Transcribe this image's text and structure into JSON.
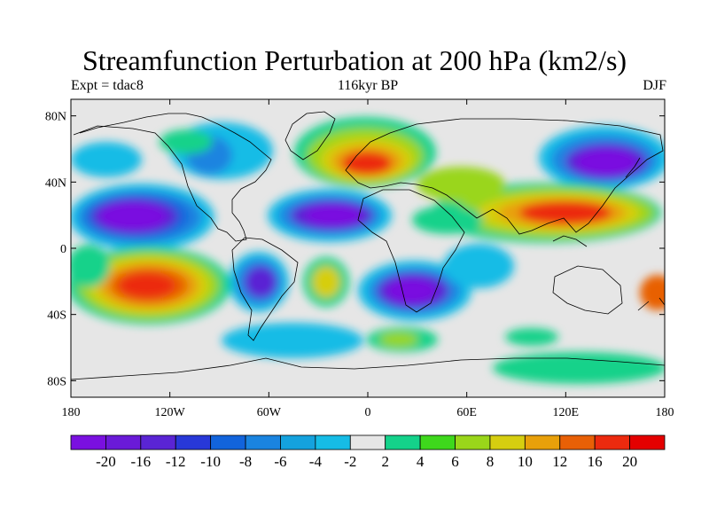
{
  "title": "Streamfunction Perturbation at 200 hPa (km2/s)",
  "left_subtitle": "Expt = tdac8",
  "center_subtitle": "116kyr BP",
  "right_subtitle": "DJF",
  "axes": {
    "lat_ticks": [
      "80N",
      "40N",
      "0",
      "40S",
      "80S"
    ],
    "lon_ticks": [
      "180",
      "120W",
      "60W",
      "0",
      "60E",
      "120E",
      "180"
    ],
    "lat_range": [
      -90,
      90
    ],
    "lon_range": [
      -180,
      180
    ]
  },
  "colorbar": {
    "labels": [
      "-20",
      "-16",
      "-12",
      "-10",
      "-8",
      "-6",
      "-4",
      "-2",
      "2",
      "4",
      "6",
      "8",
      "10",
      "12",
      "16",
      "20"
    ],
    "colors": [
      "#7a10e0",
      "#6a1ad8",
      "#5a24d4",
      "#2838d8",
      "#1264dc",
      "#1a84e0",
      "#14a2de",
      "#16bce6",
      "#e6e6e6",
      "#14d28a",
      "#3ed81c",
      "#9ad61a",
      "#d6ce10",
      "#e8a00a",
      "#e86006",
      "#ec2a0e",
      "#e40000"
    ]
  },
  "colors": {
    "background": "#e6e6e6",
    "frame": "#000000"
  }
}
